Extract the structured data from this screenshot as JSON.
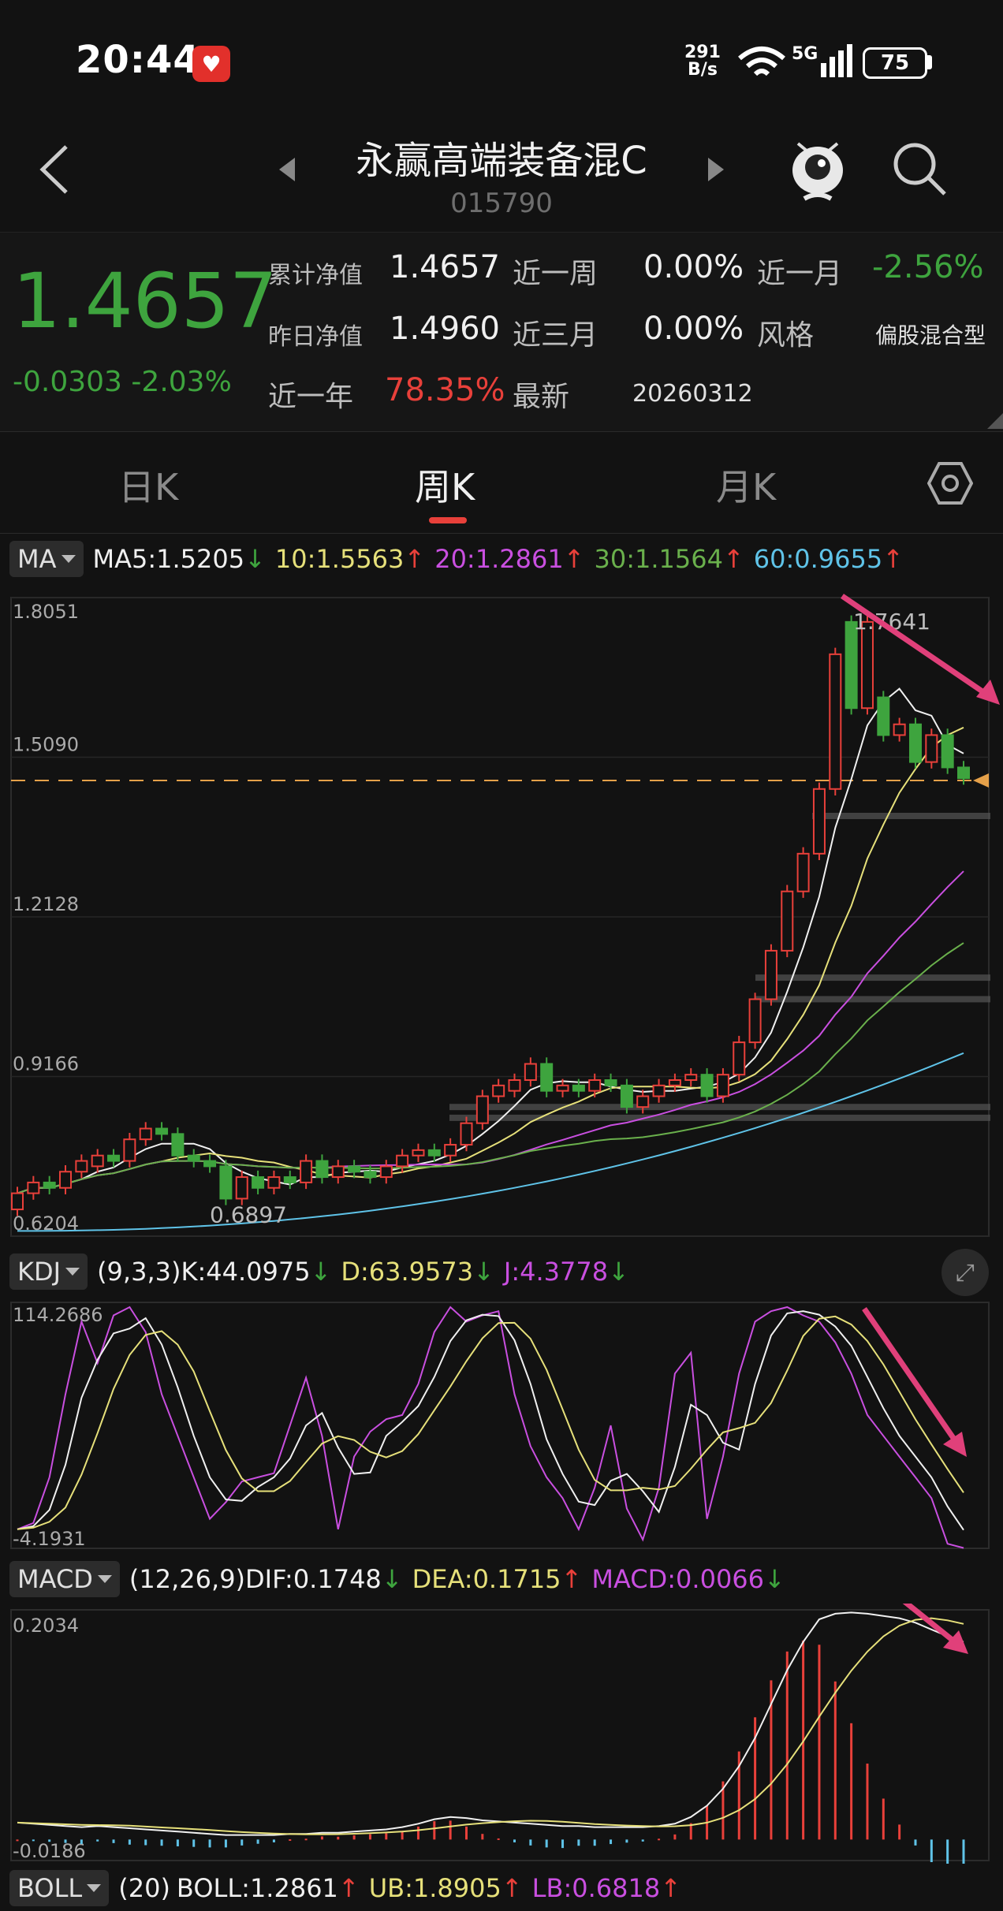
{
  "status": {
    "time": "20:44",
    "speed_top": "291",
    "speed_bottom": "B/s",
    "network": "5G",
    "battery": "75"
  },
  "header": {
    "fund_name": "永赢高端装备混C",
    "fund_code": "015790"
  },
  "nav": {
    "current": "1.4657",
    "change_abs": "-0.0303",
    "change_pct": "-2.03%",
    "cum_nav_label": "累计净值",
    "cum_nav": "1.4657",
    "prev_nav_label": "昨日净值",
    "prev_nav": "1.4960",
    "week_label": "近一周",
    "week": "0.00%",
    "month_label": "近一月",
    "month": "-2.56%",
    "quarter_label": "近三月",
    "quarter": "0.00%",
    "style_label": "风格",
    "style": "偏股混合型",
    "year_label": "近一年",
    "year": "78.35%",
    "latest_label": "最新",
    "latest": "20260312"
  },
  "tabs": {
    "day": "日K",
    "week": "周K",
    "month": "月K"
  },
  "ma": {
    "button": "MA",
    "ma5": "MA5:1.5205",
    "ma10": "10:1.5563",
    "ma20": "20:1.2861",
    "ma30": "30:1.1564",
    "ma60": "60:0.9655",
    "arrow_down": "↓",
    "arrow_up": "↑",
    "y_labels": [
      "1.8051",
      "1.5090",
      "1.2128",
      "0.9166",
      "0.6204"
    ],
    "high_label": "1.7641",
    "low_label": "0.6897"
  },
  "kdj": {
    "button": "KDJ",
    "params": "(9,3,3)",
    "k": "K:44.0975",
    "d": "D:63.9573",
    "j": "J:4.3778",
    "y_top": "114.2686",
    "y_bottom": "-4.1931"
  },
  "macd": {
    "button": "MACD",
    "params": "(12,26,9)",
    "dif": "DIF:0.1748",
    "dea": "DEA:0.1715",
    "macd": "MACD:0.0066",
    "y_top": "0.2034",
    "y_bottom": "-0.0186"
  },
  "boll": {
    "button": "BOLL",
    "params": "(20)",
    "boll": "BOLL:1.2861",
    "ub": "UB:1.8905",
    "lb": "LB:0.6818"
  },
  "colors": {
    "up": "#e8403a",
    "down": "#3ea43e",
    "ma5": "#f0f0f0",
    "ma10": "#e6e07a",
    "ma20": "#c94fe0",
    "ma30": "#6ab04c",
    "ma60": "#5fc3e8",
    "annotation": "#e0407a"
  },
  "chart_data": {
    "type": "line",
    "x_count": 60,
    "candles": [
      {
        "o": 0.67,
        "c": 0.7
      },
      {
        "o": 0.7,
        "c": 0.72
      },
      {
        "o": 0.72,
        "c": 0.71
      },
      {
        "o": 0.71,
        "c": 0.74
      },
      {
        "o": 0.74,
        "c": 0.76
      },
      {
        "o": 0.75,
        "c": 0.77
      },
      {
        "o": 0.77,
        "c": 0.76
      },
      {
        "o": 0.76,
        "c": 0.8
      },
      {
        "o": 0.8,
        "c": 0.82
      },
      {
        "o": 0.82,
        "c": 0.81
      },
      {
        "o": 0.81,
        "c": 0.77
      },
      {
        "o": 0.77,
        "c": 0.76
      },
      {
        "o": 0.76,
        "c": 0.75
      },
      {
        "o": 0.75,
        "c": 0.69
      },
      {
        "o": 0.69,
        "c": 0.73
      },
      {
        "o": 0.73,
        "c": 0.71
      },
      {
        "o": 0.71,
        "c": 0.73
      },
      {
        "o": 0.73,
        "c": 0.72
      },
      {
        "o": 0.72,
        "c": 0.76
      },
      {
        "o": 0.76,
        "c": 0.73
      },
      {
        "o": 0.73,
        "c": 0.75
      },
      {
        "o": 0.75,
        "c": 0.74
      },
      {
        "o": 0.74,
        "c": 0.73
      },
      {
        "o": 0.73,
        "c": 0.75
      },
      {
        "o": 0.75,
        "c": 0.77
      },
      {
        "o": 0.77,
        "c": 0.78
      },
      {
        "o": 0.78,
        "c": 0.77
      },
      {
        "o": 0.77,
        "c": 0.79
      },
      {
        "o": 0.79,
        "c": 0.83
      },
      {
        "o": 0.83,
        "c": 0.88
      },
      {
        "o": 0.88,
        "c": 0.9
      },
      {
        "o": 0.89,
        "c": 0.91
      },
      {
        "o": 0.91,
        "c": 0.94
      },
      {
        "o": 0.94,
        "c": 0.89
      },
      {
        "o": 0.89,
        "c": 0.9
      },
      {
        "o": 0.9,
        "c": 0.89
      },
      {
        "o": 0.89,
        "c": 0.91
      },
      {
        "o": 0.91,
        "c": 0.9
      },
      {
        "o": 0.9,
        "c": 0.86
      },
      {
        "o": 0.86,
        "c": 0.88
      },
      {
        "o": 0.88,
        "c": 0.9
      },
      {
        "o": 0.9,
        "c": 0.91
      },
      {
        "o": 0.91,
        "c": 0.92
      },
      {
        "o": 0.92,
        "c": 0.88
      },
      {
        "o": 0.88,
        "c": 0.92
      },
      {
        "o": 0.92,
        "c": 0.98
      },
      {
        "o": 0.98,
        "c": 1.06
      },
      {
        "o": 1.06,
        "c": 1.15
      },
      {
        "o": 1.15,
        "c": 1.26
      },
      {
        "o": 1.26,
        "c": 1.33
      },
      {
        "o": 1.33,
        "c": 1.45
      },
      {
        "o": 1.45,
        "c": 1.7
      },
      {
        "o": 1.76,
        "c": 1.6
      },
      {
        "o": 1.6,
        "c": 1.76
      },
      {
        "o": 1.62,
        "c": 1.55
      },
      {
        "o": 1.55,
        "c": 1.57
      },
      {
        "o": 1.57,
        "c": 1.5
      },
      {
        "o": 1.5,
        "c": 1.55
      },
      {
        "o": 1.55,
        "c": 1.49
      },
      {
        "o": 1.49,
        "c": 1.47
      }
    ],
    "ylim": [
      0.6204,
      1.8051
    ],
    "kdj_ylim": [
      -4.1931,
      114.2686
    ],
    "macd_ylim": [
      -0.0186,
      0.2034
    ]
  }
}
